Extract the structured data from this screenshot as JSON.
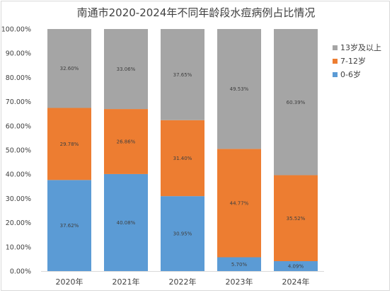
{
  "chart_data": {
    "type": "bar",
    "stacked": true,
    "percent": true,
    "title": "南通市2020-2024年不同年龄段水痘病例占比情况",
    "categories": [
      "2020年",
      "2021年",
      "2022年",
      "2023年",
      "2024年"
    ],
    "series": [
      {
        "name": "0-6岁",
        "color": "#5b9bd5",
        "values": [
          37.62,
          40.08,
          30.95,
          5.7,
          4.09
        ],
        "labels": [
          "37.62%",
          "40.08%",
          "30.95%",
          "5.70%",
          "4.09%"
        ]
      },
      {
        "name": "7-12岁",
        "color": "#ed7d31",
        "values": [
          29.78,
          26.86,
          31.4,
          44.77,
          35.52
        ],
        "labels": [
          "29.78%",
          "26.86%",
          "31.40%",
          "44.77%",
          "35.52%"
        ]
      },
      {
        "name": "13岁及以上",
        "color": "#a5a5a5",
        "values": [
          32.6,
          33.06,
          37.65,
          49.53,
          60.39
        ],
        "labels": [
          "32.60%",
          "33.06%",
          "37.65%",
          "49.53%",
          "60.39%"
        ]
      }
    ],
    "y_ticks": [
      "0.00%",
      "10.00%",
      "20.00%",
      "30.00%",
      "40.00%",
      "50.00%",
      "60.00%",
      "70.00%",
      "80.00%",
      "90.00%",
      "100.00%"
    ],
    "ylim": [
      0,
      100
    ],
    "grid": false,
    "legend_position": "right",
    "legend_order": [
      "13岁及以上",
      "7-12岁",
      "0-6岁"
    ]
  }
}
